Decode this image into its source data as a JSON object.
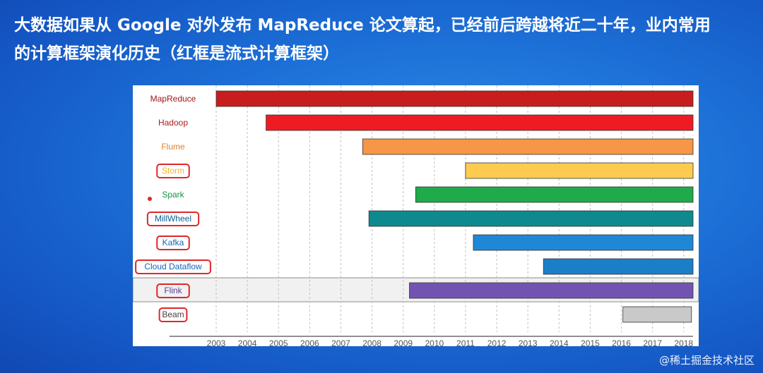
{
  "slide": {
    "title_line1": "大数据如果从 Google 对外发布 MapReduce 论文算起，已经前后跨越将近二十年，业内常用",
    "title_line2": "的计算框架演化历史（红框是流式计算框架）",
    "credit": "@稀土掘金技术社区"
  },
  "chart_data": {
    "type": "gantt",
    "title": "",
    "xlabel": "",
    "ylabel": "",
    "x_ticks": [
      "2003",
      "2004",
      "2005",
      "2006",
      "2007",
      "2008",
      "2009",
      "2010",
      "2011",
      "2012",
      "2013",
      "2014",
      "2015",
      "2016",
      "2017",
      "2018"
    ],
    "xlim": [
      2003,
      2018.3
    ],
    "grid": true,
    "highlight_note": "红框是流式计算框架",
    "frameworks": [
      {
        "name": "MapReduce",
        "start": 2003.0,
        "end": 2018.3,
        "color": "#c81d1d",
        "label_color": "#a31515",
        "streaming": false,
        "highlight_row": false
      },
      {
        "name": "Hadoop",
        "start": 2004.6,
        "end": 2018.3,
        "color": "#ee1b24",
        "label_color": "#b01a1a",
        "streaming": false,
        "highlight_row": false
      },
      {
        "name": "Flume",
        "start": 2007.7,
        "end": 2018.3,
        "color": "#f79646",
        "label_color": "#e3802d",
        "streaming": false,
        "highlight_row": false
      },
      {
        "name": "Storm",
        "start": 2011.0,
        "end": 2018.3,
        "color": "#fdcb4f",
        "label_color": "#f2b233",
        "streaming": true,
        "highlight_row": false
      },
      {
        "name": "Spark",
        "start": 2009.4,
        "end": 2018.3,
        "color": "#1fab4a",
        "label_color": "#159640",
        "streaming": false,
        "highlight_row": false
      },
      {
        "name": "MillWheel",
        "start": 2007.9,
        "end": 2018.3,
        "color": "#0e8a8e",
        "label_color": "#0a5f8f",
        "streaming": true,
        "highlight_row": false
      },
      {
        "name": "Kafka",
        "start": 2011.25,
        "end": 2018.3,
        "color": "#1e88d6",
        "label_color": "#1566b8",
        "streaming": true,
        "highlight_row": false
      },
      {
        "name": "Cloud Dataflow",
        "start": 2013.5,
        "end": 2018.3,
        "color": "#1b7fc8",
        "label_color": "#1566b8",
        "streaming": true,
        "highlight_row": false
      },
      {
        "name": "Flink",
        "start": 2009.2,
        "end": 2018.3,
        "color": "#7353b2",
        "label_color": "#5b3c9c",
        "streaming": true,
        "highlight_row": true
      },
      {
        "name": "Beam",
        "start": 2016.05,
        "end": 2018.25,
        "color": "#c9c9c9",
        "label_color": "#444444",
        "streaming": true,
        "highlight_row": false
      }
    ]
  }
}
